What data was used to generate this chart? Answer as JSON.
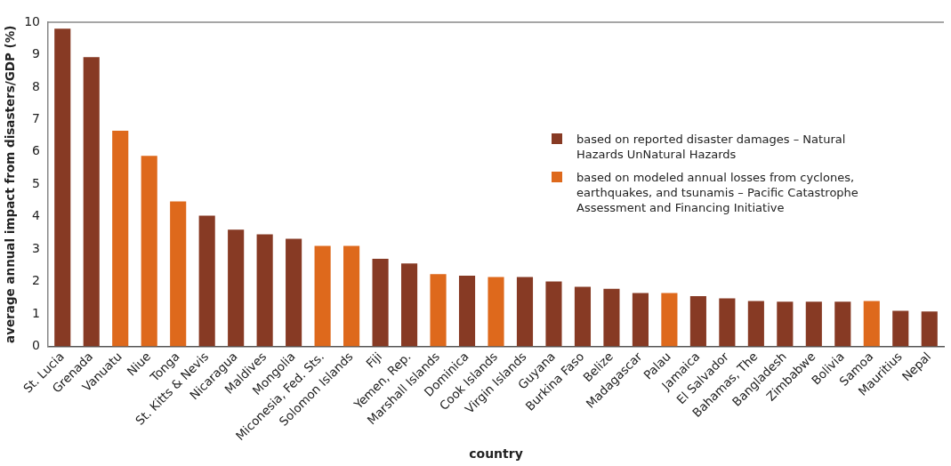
{
  "chart_data": {
    "type": "bar",
    "ylabel": "average annual impact from disasters/GDP (%)",
    "xlabel": "country",
    "categories": [
      "St. Lucia",
      "Grenada",
      "Vanuatu",
      "Niue",
      "Tonga",
      "St. Kitts & Nevis",
      "Nicaragua",
      "Maldives",
      "Mongolia",
      "Miconesia, Fed. Sts.",
      "Solomon Islands",
      "Fiji",
      "Yemen, Rep.",
      "Marshall Islands",
      "Dominica",
      "Cook Islands",
      "Virgin Islands",
      "Guyana",
      "Burkina Faso",
      "Belize",
      "Madagascar",
      "Palau",
      "Jamaica",
      "El Salvador",
      "Bahamas, The",
      "Bangladesh",
      "Zimbabwe",
      "Bolivia",
      "Samoa",
      "Mauritius",
      "Nepal"
    ],
    "series": [
      {
        "name": "based on reported disaster damages – Natural Hazards UnNatural Hazards",
        "color": "#873a24",
        "values": [
          9.8,
          8.92,
          null,
          null,
          null,
          4.03,
          3.6,
          3.46,
          3.32,
          null,
          null,
          2.7,
          2.56,
          null,
          2.18,
          null,
          2.14,
          2.0,
          1.84,
          1.78,
          1.65,
          null,
          1.55,
          1.48,
          1.4,
          1.38,
          1.38,
          1.38,
          null,
          1.1,
          1.08
        ]
      },
      {
        "name": "based on modeled annual losses from cyclones, earthquakes, and tsunamis – Pacific Catastrophe Assessment and Financing Initiative",
        "color": "#de691c",
        "values": [
          null,
          null,
          6.65,
          5.88,
          4.47,
          null,
          null,
          null,
          null,
          3.1,
          3.1,
          null,
          null,
          2.23,
          null,
          2.14,
          null,
          null,
          null,
          null,
          null,
          1.65,
          null,
          null,
          null,
          null,
          null,
          null,
          1.4,
          null,
          null
        ]
      }
    ],
    "ylim": [
      0,
      10
    ],
    "yticks": [
      0,
      1,
      2,
      3,
      4,
      5,
      6,
      7,
      8,
      9,
      10
    ],
    "grid": false,
    "legend": "top right"
  }
}
